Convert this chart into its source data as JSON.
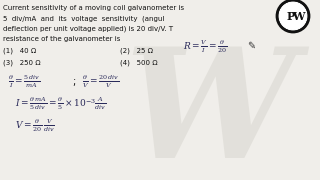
{
  "bg_color": "#f0eeea",
  "watermark_W_color": "#dddbd5",
  "text_color": "#111111",
  "formula_color": "#2a2a5a",
  "logo_bg": "#1a1a1a",
  "logo_text": "PW",
  "question_lines": [
    "Current sensitivity of a moving coil galvanometer is",
    "5  div/mA  and  its  voltage  sensitivity  (angul",
    "deflection per unit voltage applied) is 20 div/V. T",
    "resistance of the galvanometer is"
  ],
  "options_row1": [
    "(1)   40 Ω",
    "(2)   25 Ω"
  ],
  "options_row2": [
    "(3)   250 Ω",
    "(4)   500 Ω"
  ],
  "figsize": [
    3.2,
    1.8
  ],
  "dpi": 100
}
